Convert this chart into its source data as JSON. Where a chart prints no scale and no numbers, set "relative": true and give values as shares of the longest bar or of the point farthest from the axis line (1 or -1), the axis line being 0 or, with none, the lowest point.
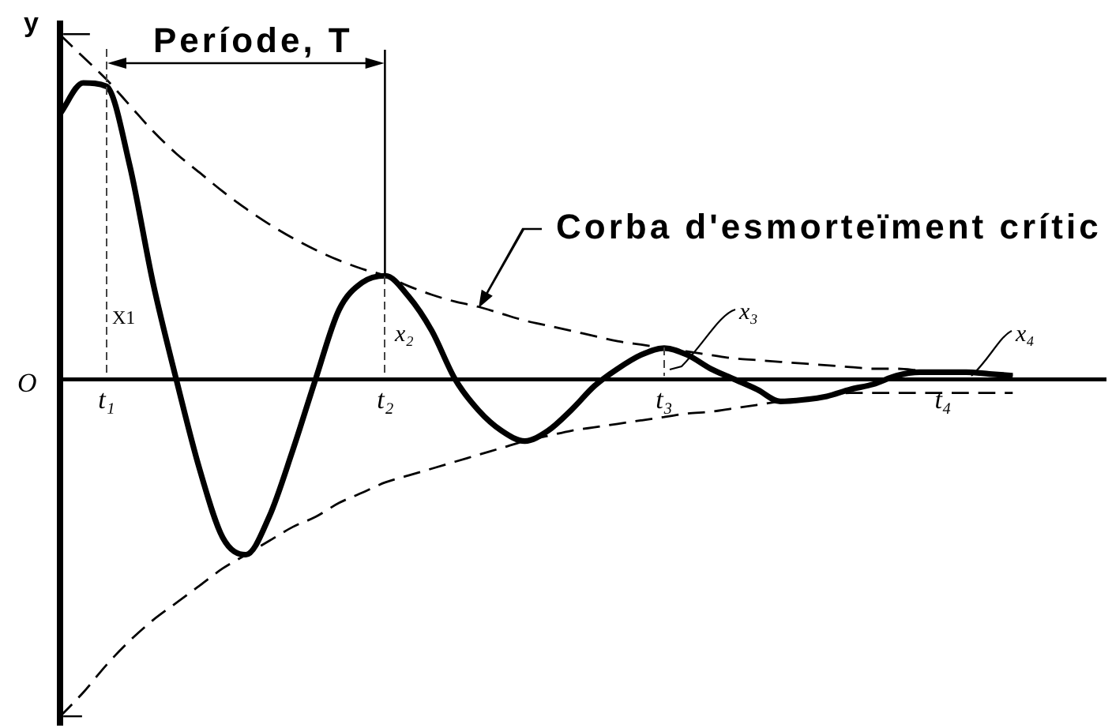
{
  "chart_data": {
    "type": "line",
    "relative": true,
    "ylabel": "y",
    "categories": [
      null,
      null,
      "t₁",
      null,
      null,
      null,
      null,
      null,
      null,
      null,
      null,
      null,
      null,
      null,
      "t₂",
      null,
      null,
      null,
      null,
      null,
      null,
      null,
      null,
      null,
      null,
      null,
      "t₃",
      null,
      null,
      null,
      null,
      null,
      null,
      null,
      null,
      null,
      null,
      null,
      "t₄",
      null,
      null,
      null,
      null,
      null,
      null,
      null
    ],
    "series": [
      {
        "color": "#000000",
        "line_style": "solid",
        "values": [
          0.77,
          0.86,
          0.85,
          0.62,
          0.28,
          0,
          -0.26,
          -0.46,
          -0.51,
          -0.4,
          -0.21,
          0,
          0.2,
          0.28,
          0.3,
          0.24,
          0.14,
          0,
          -0.09,
          -0.15,
          -0.18,
          -0.15,
          -0.09,
          -0.02,
          0.03,
          0.07,
          0.09,
          0.07,
          0.03,
          0,
          -0.03,
          -0.065,
          -0.06,
          -0.05,
          -0.03,
          -0.015,
          0.01,
          0.02,
          0.02,
          0.02,
          0.015,
          0.01,
          null,
          null,
          null,
          null
        ]
      },
      {
        "color": "#000000",
        "line_style": "dashed",
        "values": [
          1.0,
          0.935,
          0.87,
          0.795,
          0.72,
          0.655,
          0.6,
          0.545,
          0.495,
          0.45,
          0.41,
          0.375,
          0.345,
          0.32,
          0.3,
          0.27,
          0.245,
          0.225,
          0.21,
          0.19,
          0.17,
          0.155,
          0.14,
          0.125,
          0.11,
          0.1,
          0.09,
          0.08,
          0.07,
          0.06,
          0.055,
          0.05,
          0.045,
          0.04,
          0.035,
          0.03,
          0.03,
          0.025,
          0.02,
          0.02,
          0.015,
          0.01,
          null,
          null,
          null,
          null
        ]
      },
      {
        "color": "#000000",
        "line_style": "dashed",
        "values": [
          -0.98,
          -0.91,
          -0.83,
          -0.76,
          -0.7,
          -0.65,
          -0.6,
          -0.55,
          -0.51,
          -0.47,
          -0.43,
          -0.4,
          -0.36,
          -0.33,
          -0.3,
          -0.28,
          -0.26,
          -0.24,
          -0.22,
          -0.2,
          -0.18,
          -0.165,
          -0.15,
          -0.14,
          -0.13,
          -0.12,
          -0.11,
          -0.1,
          -0.095,
          -0.085,
          -0.075,
          -0.065,
          -0.06,
          -0.05,
          -0.04,
          -0.04,
          -0.04,
          -0.04,
          -0.04,
          -0.04,
          -0.04,
          -0.04,
          null,
          null,
          null,
          null
        ]
      }
    ],
    "annotations": [
      "Període, T",
      "Corba d'esmorteïment crític",
      "X1",
      "x₂",
      "x₃",
      "x₄",
      "O"
    ],
    "marker": "none",
    "legend": false,
    "grid": false,
    "tick_labels": "x"
  }
}
